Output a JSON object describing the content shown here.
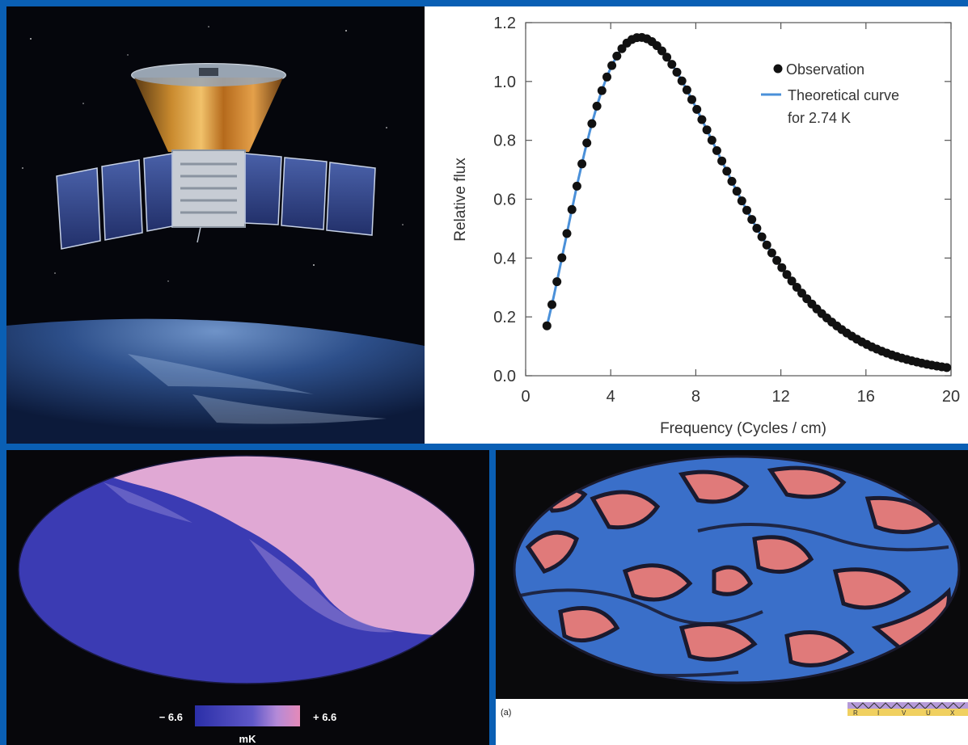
{
  "chart_data": {
    "type": "scatter",
    "xlabel": "Frequency (Cycles / cm)",
    "ylabel": "Relative flux",
    "xlim": [
      0,
      20
    ],
    "ylim": [
      0,
      1.2
    ],
    "x_ticks": [
      "0",
      "4",
      "8",
      "12",
      "16",
      "20"
    ],
    "y_ticks": [
      "0.0",
      "0.2",
      "0.4",
      "0.6",
      "0.8",
      "1.0",
      "1.2"
    ],
    "legend_position": "top-right",
    "series": [
      {
        "name": "Observation",
        "style": "markers",
        "color": "#111111",
        "temperature_K": 2.74,
        "x_range": [
          1.0,
          19.8
        ],
        "x_step": 0.235
      },
      {
        "name": "Theoretical curve",
        "style": "line",
        "color": "#4a90d9",
        "temperature_K": 2.74,
        "x_range": [
          1.0,
          19.8
        ]
      }
    ],
    "legend": {
      "observation": "Observation",
      "theory_line1": "Theoretical curve",
      "theory_line2": "for 2.74 K"
    },
    "peak": {
      "x": 5.3,
      "y": 1.15
    }
  },
  "colorbar": {
    "min_label": "− 6.6",
    "max_label": "+ 6.6",
    "unit": "mK",
    "low_color": "#2b2fa8",
    "high_color": "#e58ab8"
  },
  "anisotropy_map": {
    "caption": "(a)",
    "scale_letters": [
      "R",
      "I",
      "V",
      "U",
      "X"
    ],
    "colors": {
      "cold": "#3a6fc9",
      "hot": "#e07a7a",
      "outline": "#1a1a2e"
    }
  },
  "colors": {
    "page_border": "#0a5fb4",
    "space": "#05060c"
  }
}
